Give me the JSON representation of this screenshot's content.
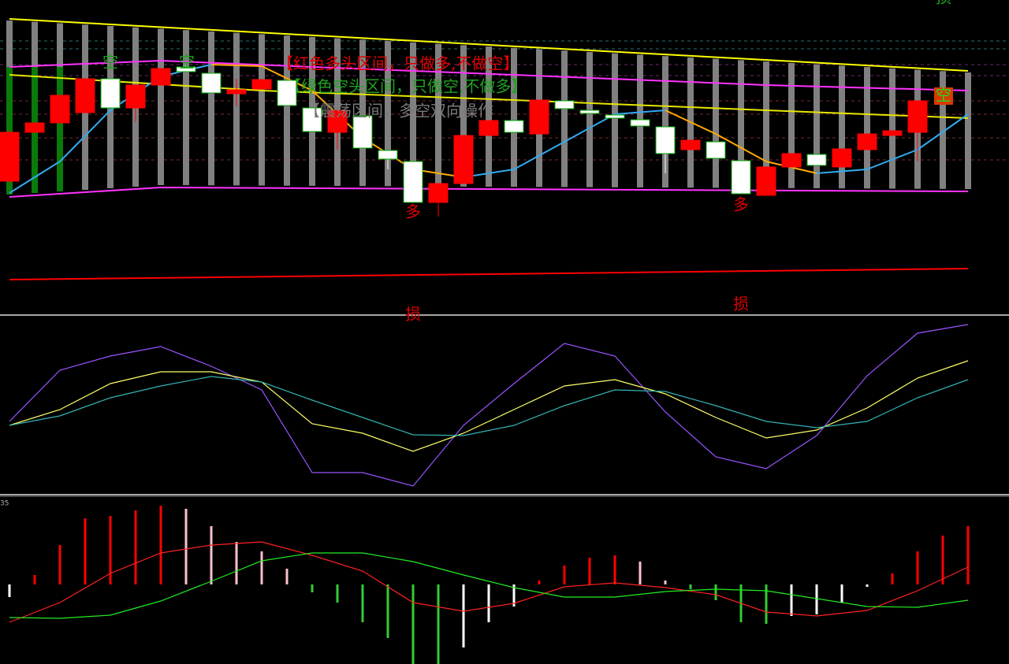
{
  "chart_data": [
    {
      "type": "candlestick",
      "xlim": [
        -0.375,
        39.625
      ],
      "ylim": [
        0,
        400
      ],
      "annotations": [
        "空",
        "空",
        "【红色多头区间，只做多,不做空】",
        "【绿色空头区间，只做空,不做多】",
        "【震荡区间，多空双向操作",
        "空",
        "多",
        "多",
        "损",
        "损",
        "损"
      ],
      "candles": {
        "up_color": "#ff0000",
        "down_color": "#ffffff",
        "open": [
          170,
          232,
          244,
          257,
          300,
          263,
          292,
          315,
          307,
          281,
          287,
          298,
          263,
          232,
          253,
          209,
          195,
          143,
          167,
          228,
          247,
          230,
          272,
          260,
          254,
          248,
          239,
          210,
          220,
          196,
          152,
          188,
          204,
          188,
          210,
          228,
          232
        ],
        "close": [
          232,
          244,
          279,
          300,
          263,
          292,
          313,
          309,
          282,
          286,
          299,
          266,
          233,
          260,
          212,
          198,
          143,
          167,
          228,
          247,
          232,
          273,
          262,
          256,
          250,
          240,
          205,
          222,
          199,
          154,
          188,
          205,
          190,
          211,
          230,
          234,
          272
        ],
        "high": [
          235,
          244,
          279,
          300,
          300,
          292,
          313,
          317,
          307,
          300,
          299,
          298,
          263,
          260,
          253,
          209,
          195,
          167,
          228,
          247,
          247,
          273,
          272,
          260,
          254,
          248,
          239,
          222,
          220,
          196,
          188,
          205,
          204,
          211,
          230,
          234,
          272
        ],
        "low": [
          168,
          232,
          244,
          257,
          263,
          245,
          292,
          309,
          282,
          265,
          287,
          266,
          233,
          210,
          212,
          185,
          143,
          125,
          167,
          228,
          232,
          230,
          262,
          256,
          250,
          240,
          180,
          210,
          199,
          154,
          152,
          188,
          190,
          188,
          210,
          228,
          195
        ]
      },
      "series": [
        {
          "color": "#ffff00",
          "x": [
            0,
            38
          ],
          "values": [
            376,
            310
          ]
        },
        {
          "color": "#ff33ff",
          "x": [
            0,
            6,
            12,
            20,
            30,
            38
          ],
          "values": [
            315,
            323,
            315,
            305,
            292,
            285
          ]
        },
        {
          "color": "#ff33ff",
          "x": [
            0,
            6,
            38
          ],
          "values": [
            150,
            162,
            157
          ]
        },
        {
          "color": "#e6e600",
          "x": [
            0,
            10,
            20,
            30,
            38
          ],
          "values": [
            305,
            285,
            273,
            260,
            250
          ]
        },
        {
          "color": "#ff0000",
          "x": [
            0,
            38
          ],
          "values": [
            45,
            59
          ]
        },
        {
          "rising_color": "#33aaee",
          "falling_color": "#ffaa00",
          "x": [
            0,
            2,
            4,
            6,
            8,
            10,
            12,
            14,
            16,
            18,
            20,
            22,
            24,
            26,
            28,
            30,
            32,
            34,
            36,
            38
          ],
          "values": [
            155,
            195,
            260,
            303,
            318,
            316,
            285,
            225,
            185,
            175,
            185,
            220,
            255,
            260,
            230,
            195,
            180,
            185,
            210,
            255
          ]
        }
      ]
    },
    {
      "type": "line",
      "xlim": [
        -0.375,
        39.625
      ],
      "ylim": [
        0,
        226
      ],
      "series": [
        {
          "color": "#9955ff",
          "x": [
            0,
            2,
            4,
            6,
            8,
            10,
            12,
            14,
            16,
            18,
            20,
            22,
            24,
            26,
            28,
            30,
            32,
            34,
            36,
            38
          ],
          "values": [
            93,
            158,
            176,
            188,
            163,
            133,
            28,
            28,
            11,
            88,
            141,
            192,
            176,
            105,
            48,
            33,
            75,
            151,
            205,
            216
          ]
        },
        {
          "color": "#ffff66",
          "x": [
            0,
            2,
            4,
            6,
            8,
            10,
            12,
            14,
            16,
            18,
            20,
            22,
            24,
            26,
            28,
            30,
            32,
            34,
            36,
            38
          ],
          "values": [
            88,
            108,
            141,
            156,
            156,
            143,
            90,
            78,
            55,
            78,
            108,
            138,
            146,
            128,
            98,
            72,
            82,
            110,
            148,
            170
          ]
        },
        {
          "color": "#33b3b3",
          "x": [
            0,
            2,
            4,
            6,
            8,
            10,
            12,
            14,
            16,
            18,
            20,
            22,
            24,
            26,
            28,
            30,
            32,
            34,
            36,
            38
          ],
          "values": [
            88,
            100,
            123,
            138,
            150,
            143,
            120,
            98,
            76,
            75,
            88,
            113,
            133,
            131,
            113,
            93,
            85,
            93,
            123,
            146
          ]
        }
      ]
    },
    {
      "type": "bar",
      "xlim": [
        -0.375,
        39.625
      ],
      "ylim": [
        -101,
        112
      ],
      "annotations": [
        "35"
      ],
      "values": [
        -16,
        12,
        50,
        84,
        87,
        94,
        100,
        96,
        74,
        54,
        42,
        20,
        -10,
        -23,
        -48,
        -68,
        -101,
        -101,
        -80,
        -48,
        -28,
        5,
        24,
        34,
        37,
        29,
        5,
        -6,
        -20,
        -48,
        -50,
        -40,
        -38,
        -23,
        -3,
        14,
        42,
        62,
        74
      ],
      "colors": [
        "#ffffff",
        "#ff0000",
        "#ff0000",
        "#ff0000",
        "#ff0000",
        "#ff0000",
        "#ff0000",
        "#ffc0cb",
        "#ffc0cb",
        "#ffc0cb",
        "#ffc0cb",
        "#ffc0cb",
        "#33cc33",
        "#33cc33",
        "#33cc33",
        "#33cc33",
        "#33cc33",
        "#33cc33",
        "#ffffff",
        "#ffffff",
        "#ffffff",
        "#ff0000",
        "#ff0000",
        "#ff0000",
        "#ff0000",
        "#ffc0cb",
        "#ffc0cb",
        "#33cc33",
        "#33cc33",
        "#33cc33",
        "#33cc33",
        "#ffffff",
        "#ffffff",
        "#ffffff",
        "#ffffff",
        "#ff0000",
        "#ff0000",
        "#ff0000",
        "#ff0000"
      ],
      "series": [
        {
          "color": "#ff2222",
          "x": [
            0,
            2,
            4,
            6,
            8,
            10,
            12,
            14,
            16,
            18,
            20,
            22,
            24,
            26,
            28,
            30,
            32,
            34,
            36,
            38
          ],
          "values": [
            -48,
            -23,
            14,
            40,
            50,
            54,
            37,
            17,
            -23,
            -34,
            -24,
            -3,
            2,
            -4,
            -13,
            -35,
            -40,
            -33,
            -8,
            22
          ]
        },
        {
          "color": "#22ee22",
          "x": [
            0,
            2,
            4,
            6,
            8,
            10,
            12,
            14,
            16,
            18,
            20,
            22,
            24,
            26,
            28,
            30,
            32,
            34,
            36,
            38
          ],
          "values": [
            -42,
            -43,
            -39,
            -21,
            4,
            30,
            40,
            40,
            29,
            12,
            -4,
            -16,
            -16,
            -9,
            -6,
            -8,
            -18,
            -28,
            -29,
            -20
          ]
        }
      ]
    }
  ]
}
